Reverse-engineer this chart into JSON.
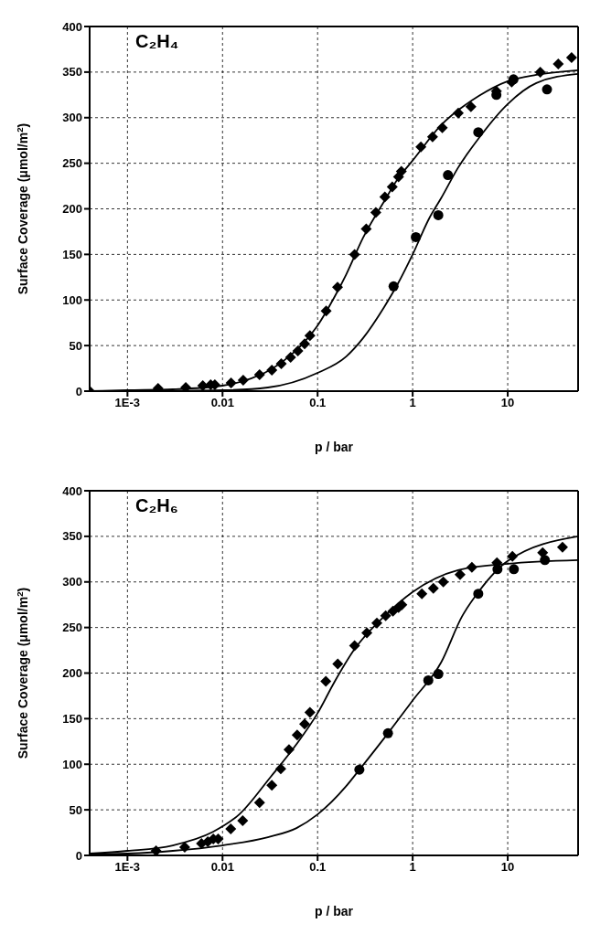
{
  "chart_data": [
    {
      "type": "scatter",
      "title": "C₂H₄",
      "xlabel": "p / bar",
      "ylabel": "Surface Coverage (μmol/m$^{2}$)",
      "log": "x",
      "grid": true,
      "xlim": [
        0.0004,
        55
      ],
      "ylim": [
        0,
        400
      ],
      "xticks": [
        {
          "value": 0.001,
          "label": "1E-3"
        },
        0.01,
        0.1,
        1,
        10
      ],
      "yticks": [
        0,
        50,
        100,
        150,
        200,
        250,
        300,
        350,
        400
      ],
      "series": [
        {
          "marker": "diamond",
          "color": "#000000",
          "x": [
            0.0004,
            0.0021,
            0.0041,
            0.0062,
            0.0075,
            0.0083,
            0.0123,
            0.0165,
            0.0245,
            0.033,
            0.0415,
            0.052,
            0.062,
            0.073,
            0.083,
            0.123,
            0.162,
            0.245,
            0.325,
            0.41,
            0.51,
            0.61,
            0.71,
            0.76,
            1.22,
            1.62,
            2.05,
            3.02,
            4.1,
            7.6,
            11,
            22,
            34,
            47
          ],
          "values": [
            0,
            3,
            4,
            6,
            7,
            7,
            9,
            12,
            18,
            23,
            30,
            37,
            44,
            52,
            61,
            88,
            114,
            150,
            178,
            196,
            213,
            224,
            235,
            241,
            268,
            279,
            289,
            305,
            312,
            329,
            339,
            350,
            359,
            366
          ]
        },
        {
          "marker": "circle",
          "color": "#000000",
          "x": [
            0.63,
            1.08,
            1.86,
            2.35,
            4.9,
            7.6,
            11.5,
            25.9
          ],
          "values": [
            115,
            169,
            193,
            237,
            284,
            325,
            342,
            331
          ]
        },
        {
          "type": "line",
          "marker": "none",
          "line_style": "solid",
          "color": "#000000",
          "x": [
            0.0004,
            0.001,
            0.003,
            0.01,
            0.02,
            0.03,
            0.05,
            0.07,
            0.1,
            0.15,
            0.2,
            0.3,
            0.5,
            0.7,
            1,
            2,
            5,
            10,
            20,
            55
          ],
          "values": [
            0,
            1,
            2,
            6,
            14,
            22,
            38,
            52,
            72,
            103,
            128,
            168,
            208,
            233,
            253,
            292,
            324,
            340,
            347,
            352
          ]
        },
        {
          "type": "line",
          "marker": "none",
          "line_style": "solid",
          "color": "#000000",
          "x": [
            0.001,
            0.01,
            0.03,
            0.1,
            0.2,
            0.3,
            0.5,
            0.7,
            1,
            1.5,
            2,
            3,
            5,
            10,
            20,
            55
          ],
          "values": [
            0,
            1,
            4,
            20,
            38,
            58,
            92,
            118,
            150,
            190,
            212,
            245,
            278,
            315,
            338,
            348
          ]
        }
      ]
    },
    {
      "type": "scatter",
      "title": "C₂H₆",
      "xlabel": "p / bar",
      "ylabel": "Surface Coverage (μmol/m$^{2}$)",
      "log": "x",
      "grid": true,
      "xlim": [
        0.0004,
        55
      ],
      "ylim": [
        0,
        400
      ],
      "xticks": [
        {
          "value": 0.001,
          "label": "1E-3"
        },
        0.01,
        0.1,
        1,
        10
      ],
      "yticks": [
        0,
        50,
        100,
        150,
        200,
        250,
        300,
        350,
        400
      ],
      "series": [
        {
          "marker": "diamond",
          "color": "#000000",
          "x": [
            0.002,
            0.004,
            0.006,
            0.007,
            0.008,
            0.009,
            0.0122,
            0.0163,
            0.0245,
            0.033,
            0.041,
            0.05,
            0.061,
            0.073,
            0.083,
            0.122,
            0.163,
            0.245,
            0.33,
            0.42,
            0.52,
            0.62,
            0.71,
            0.77,
            1.25,
            1.65,
            2.1,
            3.15,
            4.2,
            7.7,
            11.2,
            23.3,
            37.7
          ],
          "values": [
            5,
            9,
            13,
            15,
            18,
            18,
            29,
            38,
            58,
            77,
            95,
            116,
            132,
            144,
            157,
            191,
            210,
            230,
            244,
            255,
            263,
            268,
            272,
            275,
            287,
            293,
            300,
            308,
            316,
            321,
            328,
            332,
            338
          ]
        },
        {
          "marker": "circle",
          "color": "#000000",
          "x": [
            0.275,
            0.55,
            1.46,
            1.86,
            4.9,
            7.8,
            11.6,
            24.6
          ],
          "values": [
            94,
            134,
            192,
            199,
            287,
            314,
            314,
            324
          ]
        },
        {
          "type": "line",
          "marker": "none",
          "line_style": "solid",
          "color": "#000000",
          "x": [
            0.0004,
            0.001,
            0.003,
            0.008,
            0.015,
            0.032,
            0.06,
            0.1,
            0.15,
            0.24,
            0.5,
            1,
            3,
            10,
            55
          ],
          "values": [
            2,
            5,
            11,
            26,
            45,
            86,
            122,
            156,
            190,
            225,
            262,
            289,
            313,
            320,
            324
          ]
        },
        {
          "type": "line",
          "marker": "none",
          "line_style": "solid",
          "color": "#000000",
          "x": [
            0.0004,
            0.001,
            0.003,
            0.01,
            0.03,
            0.06,
            0.1,
            0.2,
            0.275,
            0.55,
            1,
            2,
            3.3,
            5,
            10,
            55
          ],
          "values": [
            1,
            2,
            5,
            11,
            20,
            30,
            45,
            76,
            94,
            134,
            170,
            212,
            262,
            290,
            323,
            350
          ]
        }
      ]
    }
  ]
}
